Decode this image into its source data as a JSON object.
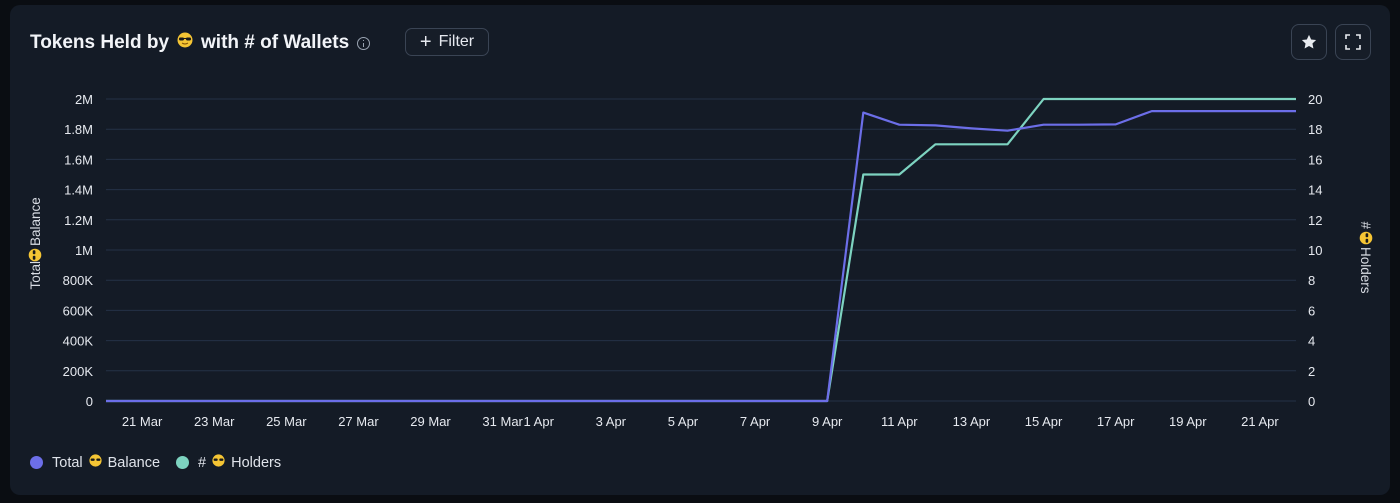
{
  "header": {
    "title_prefix": "Tokens Held by",
    "title_suffix": "with # of Wallets",
    "filter_label": "Filter",
    "icons": [
      "info-icon",
      "plus-icon",
      "star-icon",
      "fullscreen-icon",
      "sunglasses-emoji-icon"
    ]
  },
  "legend": {
    "series1_prefix": "Total",
    "series1_suffix": "Balance",
    "series2_prefix": "#",
    "series2_suffix": "Holders"
  },
  "colors": {
    "balance": "#6c6ee8",
    "holders": "#7dd3c0",
    "background": "#141b26",
    "grid": "#243246",
    "emoji": "#f5c534"
  },
  "chart_data": {
    "type": "line",
    "title": "Tokens Held by 😎 with # of Wallets",
    "x_tick_labels": [
      "21 Mar",
      "23 Mar",
      "25 Mar",
      "27 Mar",
      "29 Mar",
      "31 Mar",
      "1 Apr",
      "3 Apr",
      "5 Apr",
      "7 Apr",
      "9 Apr",
      "11 Apr",
      "13 Apr",
      "15 Apr",
      "17 Apr",
      "19 Apr",
      "21 Apr"
    ],
    "y_left": {
      "label_prefix": "Total",
      "label_suffix": "Balance",
      "range": [
        0,
        2000000
      ],
      "tick_labels": [
        "0",
        "200K",
        "400K",
        "600K",
        "800K",
        "1M",
        "1.2M",
        "1.4M",
        "1.6M",
        "1.8M",
        "2M"
      ]
    },
    "y_right": {
      "label_prefix": "#",
      "label_suffix": "Holders",
      "range": [
        0,
        20
      ],
      "tick_labels": [
        "0",
        "2",
        "4",
        "6",
        "8",
        "10",
        "12",
        "14",
        "16",
        "18",
        "20"
      ]
    },
    "grid": true,
    "legend_position": "bottom-left",
    "series": [
      {
        "name": "Total Balance",
        "axis": "left",
        "points": [
          [
            "20 Mar",
            0
          ],
          [
            "9 Apr",
            0
          ],
          [
            "10 Apr",
            1910000
          ],
          [
            "11 Apr",
            1830000
          ],
          [
            "12 Apr",
            1825000
          ],
          [
            "13 Apr",
            1805000
          ],
          [
            "14 Apr",
            1790000
          ],
          [
            "15 Apr",
            1830000
          ],
          [
            "16 Apr",
            1830000
          ],
          [
            "17 Apr",
            1832000
          ],
          [
            "18 Apr",
            1920000
          ],
          [
            "19 Apr",
            1920000
          ],
          [
            "20 Apr",
            1920000
          ],
          [
            "21 Apr",
            1920000
          ],
          [
            "22 Apr",
            1920000
          ]
        ]
      },
      {
        "name": "# Holders",
        "axis": "right",
        "points": [
          [
            "20 Mar",
            0
          ],
          [
            "9 Apr",
            0
          ],
          [
            "10 Apr",
            15
          ],
          [
            "11 Apr",
            15
          ],
          [
            "12 Apr",
            17
          ],
          [
            "13 Apr",
            17
          ],
          [
            "14 Apr",
            17
          ],
          [
            "15 Apr",
            20
          ],
          [
            "16 Apr",
            20
          ],
          [
            "17 Apr",
            20
          ],
          [
            "18 Apr",
            20
          ],
          [
            "19 Apr",
            20
          ],
          [
            "20 Apr",
            20
          ],
          [
            "21 Apr",
            20
          ],
          [
            "22 Apr",
            20
          ]
        ]
      }
    ]
  }
}
